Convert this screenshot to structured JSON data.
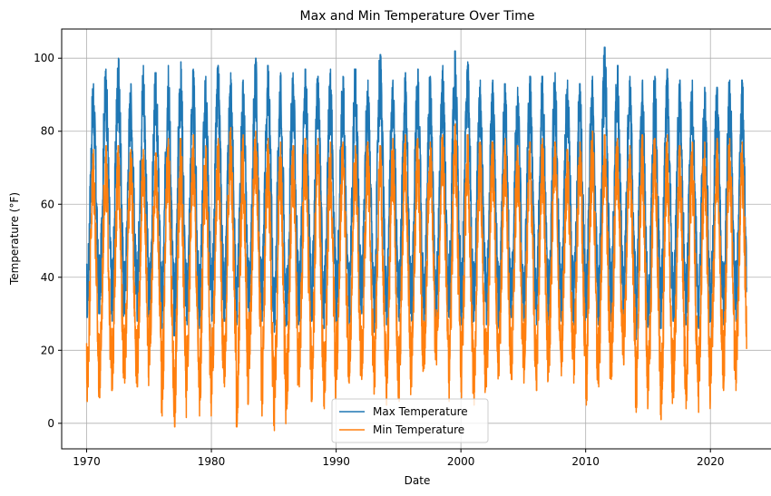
{
  "chart_data": {
    "type": "line",
    "title": "Max and Min Temperature Over Time",
    "xlabel": "Date",
    "ylabel": "Temperature (°F)",
    "xlim": [
      1968,
      2025
    ],
    "ylim": [
      -7,
      108
    ],
    "x_ticks": [
      1970,
      1980,
      1990,
      2000,
      2010,
      2020
    ],
    "x_tick_labels": [
      "1970",
      "1980",
      "1990",
      "2000",
      "2010",
      "2020"
    ],
    "y_ticks": [
      0,
      20,
      40,
      60,
      80,
      100
    ],
    "y_tick_labels": [
      "0",
      "20",
      "40",
      "60",
      "80",
      "100"
    ],
    "grid": true,
    "legend": {
      "position": "lower-center"
    },
    "x_start": 1970.0,
    "x_end": 2022.9,
    "series": [
      {
        "name": "Max Temperature",
        "color": "#1f77b4",
        "summer_peaks": [
          93,
          97,
          100,
          93,
          98,
          96,
          98,
          99,
          97,
          95,
          98,
          96,
          94,
          100,
          98,
          96,
          96,
          97,
          95,
          97,
          95,
          97,
          94,
          101,
          94,
          96,
          97,
          95,
          98,
          102,
          99,
          94,
          94,
          93,
          92,
          95,
          95,
          96,
          94,
          93,
          95,
          103,
          98,
          95,
          94,
          95,
          97,
          94,
          94,
          92,
          92,
          94,
          94
        ],
        "winter_troughs": [
          29,
          30,
          28,
          30,
          28,
          29,
          26,
          24,
          27,
          26,
          28,
          28,
          27,
          26,
          28,
          25,
          27,
          28,
          28,
          26,
          28,
          27,
          30,
          25,
          27,
          28,
          28,
          26,
          28,
          29,
          27,
          28,
          27,
          26,
          29,
          28,
          27,
          27,
          28,
          27,
          29,
          27,
          28,
          29,
          23,
          27,
          26,
          28,
          27,
          26,
          28,
          27,
          28
        ]
      },
      {
        "name": "Min Temperature",
        "color": "#ff7f0e",
        "summer_peaks": [
          75,
          76,
          76,
          75,
          75,
          74,
          78,
          78,
          79,
          76,
          78,
          81,
          79,
          80,
          78,
          77,
          76,
          78,
          78,
          77,
          77,
          76,
          77,
          76,
          78,
          79,
          78,
          77,
          79,
          82,
          79,
          77,
          77,
          78,
          76,
          77,
          78,
          77,
          75,
          77,
          80,
          79,
          78,
          76,
          79,
          78,
          79,
          76,
          77,
          77,
          78,
          78,
          77
        ],
        "winter_troughs": [
          6,
          7,
          9,
          11,
          10,
          16,
          2,
          -1,
          9,
          2,
          8,
          10,
          -1,
          15,
          2,
          -2,
          4,
          10,
          6,
          4,
          12,
          11,
          12,
          8,
          5,
          6,
          10,
          15,
          16,
          6,
          7,
          5,
          10,
          13,
          12,
          11,
          9,
          14,
          13,
          11,
          5,
          10,
          12,
          16,
          3,
          9,
          1,
          7,
          4,
          3,
          11,
          9,
          9
        ]
      }
    ]
  }
}
